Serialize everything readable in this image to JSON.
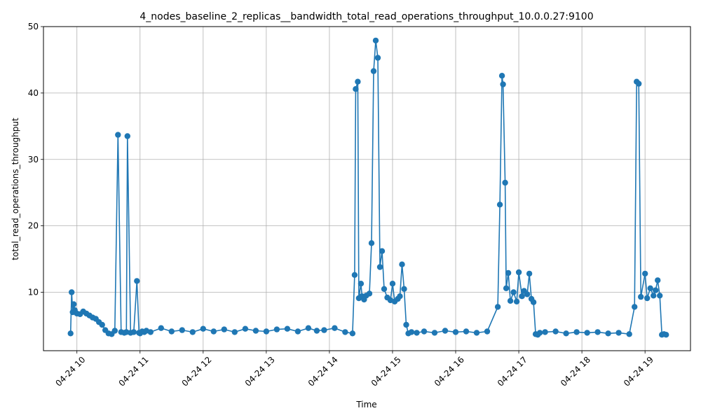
{
  "chart_data": {
    "type": "line",
    "title": "4_nodes_baseline_2_replicas__bandwidth_total_read_operations_throughput_10.0.0.27:9100",
    "xlabel": "Time",
    "ylabel": "total_read_operations_throughput",
    "x_ticks": [
      "04-24 10",
      "04-24 11",
      "04-24 12",
      "04-24 13",
      "04-24 14",
      "04-24 15",
      "04-24 16",
      "04-24 17",
      "04-24 18",
      "04-24 19"
    ],
    "y_ticks": [
      "10",
      "20",
      "30",
      "40",
      "50"
    ],
    "ylim": [
      1.2,
      50
    ],
    "grid": true,
    "legend": "none",
    "series_color": "#1f77b4",
    "series": [
      {
        "x": [
          "09:54",
          "09:55",
          "09:56",
          "09:57",
          "09:58",
          "10:00",
          "10:03",
          "10:06",
          "10:09",
          "10:12",
          "10:15",
          "10:18",
          "10:21",
          "10:24",
          "10:27",
          "10:30",
          "10:33",
          "10:36",
          "10:39",
          "10:42",
          "10:45",
          "10:47",
          "10:48",
          "10:51",
          "10:54",
          "10:57",
          "10:59",
          "11:00",
          "11:02",
          "11:04",
          "11:06",
          "11:10",
          "11:20",
          "11:30",
          "11:40",
          "11:50",
          "12:00",
          "12:10",
          "12:20",
          "12:30",
          "12:40",
          "12:50",
          "13:00",
          "13:10",
          "13:20",
          "13:30",
          "13:40",
          "13:48",
          "13:55",
          "14:05",
          "14:15",
          "14:22",
          "14:24",
          "14:25",
          "14:27",
          "14:28",
          "14:30",
          "14:31",
          "14:33",
          "14:35",
          "14:38",
          "14:40",
          "14:42",
          "14:44",
          "14:46",
          "14:48",
          "14:50",
          "14:52",
          "14:55",
          "14:58",
          "15:00",
          "15:02",
          "15:05",
          "15:07",
          "15:09",
          "15:11",
          "15:13",
          "15:15",
          "15:18",
          "15:23",
          "15:30",
          "15:40",
          "15:50",
          "16:00",
          "16:10",
          "16:20",
          "16:30",
          "16:40",
          "16:42",
          "16:44",
          "16:45",
          "16:47",
          "16:48",
          "16:50",
          "16:52",
          "16:55",
          "16:58",
          "17:00",
          "17:03",
          "17:05",
          "17:08",
          "17:10",
          "17:12",
          "17:14",
          "17:16",
          "17:18",
          "17:20",
          "17:25",
          "17:35",
          "17:45",
          "17:55",
          "18:05",
          "18:15",
          "18:25",
          "18:35",
          "18:45",
          "18:50",
          "18:52",
          "18:54",
          "18:56",
          "19:00",
          "19:02",
          "19:05",
          "19:08",
          "19:10",
          "19:12",
          "19:14",
          "19:16",
          "19:18",
          "19:20"
        ],
        "y": [
          3.8,
          10.0,
          7.0,
          8.2,
          7.3,
          6.8,
          6.7,
          7.1,
          6.8,
          6.5,
          6.2,
          6.0,
          5.5,
          5.1,
          4.3,
          3.8,
          3.7,
          4.2,
          33.7,
          4.0,
          3.9,
          4.0,
          33.5,
          3.9,
          4.0,
          11.7,
          3.9,
          3.8,
          4.1,
          4.0,
          4.2,
          4.0,
          4.6,
          4.1,
          4.3,
          4.0,
          4.5,
          4.1,
          4.4,
          4.0,
          4.5,
          4.2,
          4.1,
          4.4,
          4.5,
          4.1,
          4.6,
          4.2,
          4.3,
          4.6,
          4.0,
          3.8,
          12.6,
          40.6,
          41.7,
          9.1,
          11.3,
          9.4,
          8.9,
          9.5,
          9.8,
          17.4,
          43.3,
          47.9,
          45.3,
          13.8,
          16.2,
          10.5,
          9.2,
          8.8,
          11.3,
          8.6,
          9.0,
          9.4,
          14.2,
          10.5,
          5.1,
          3.8,
          4.0,
          3.9,
          4.1,
          3.9,
          4.2,
          4.0,
          4.1,
          3.9,
          4.1,
          7.8,
          23.2,
          42.6,
          41.3,
          26.5,
          10.6,
          12.9,
          8.7,
          10.0,
          8.6,
          13.0,
          9.4,
          10.2,
          9.7,
          12.8,
          9.0,
          8.5,
          3.7,
          3.6,
          3.9,
          4.0,
          4.1,
          3.8,
          4.0,
          3.9,
          4.0,
          3.8,
          3.9,
          3.7,
          7.8,
          41.7,
          41.4,
          9.3,
          12.8,
          9.1,
          10.6,
          9.5,
          10.3,
          11.8,
          9.5,
          3.6,
          3.7,
          3.6
        ]
      }
    ]
  }
}
